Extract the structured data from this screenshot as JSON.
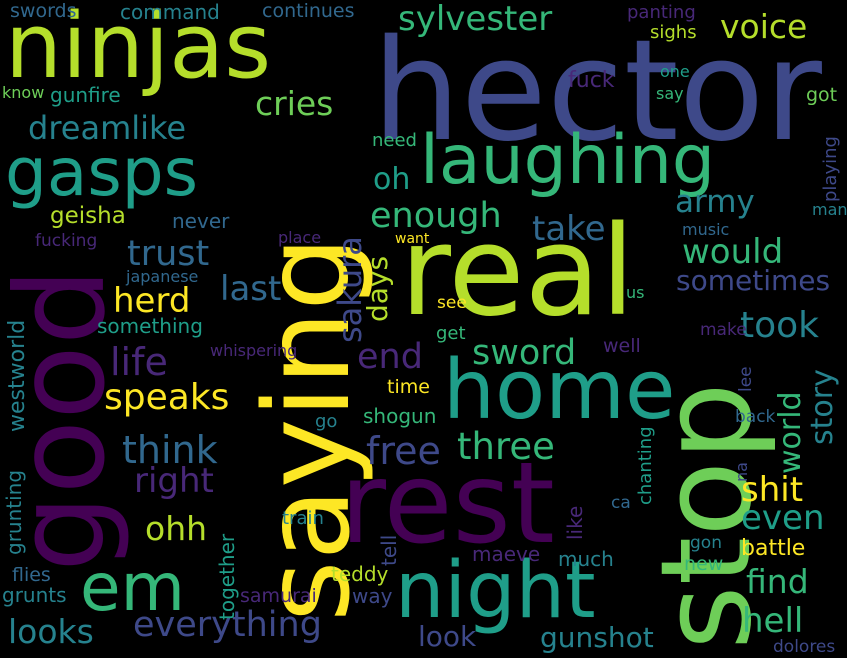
{
  "palette": {
    "background": "#000000",
    "yellow": "#fde725",
    "lime": "#b5de2b",
    "green": "#6ece58",
    "teal_green": "#35b779",
    "teal": "#1f9e89",
    "blue_teal": "#26828e",
    "blue": "#31688e",
    "indigo": "#3e4989",
    "purple": "#482878",
    "dark_purple": "#440154"
  },
  "words": [
    "hector",
    "ninjas",
    "real",
    "rest",
    "saying",
    "stop",
    "good",
    "night",
    "home",
    "laughing",
    "gasps",
    "em",
    "sylvester",
    "voice",
    "cries",
    "dreamlike",
    "enough",
    "oh",
    "sakura",
    "days",
    "army",
    "take",
    "would",
    "trust",
    "herd",
    "last",
    "life",
    "end",
    "sword",
    "took",
    "sometimes",
    "speaks",
    "think",
    "right",
    "ohh",
    "free",
    "three",
    "world",
    "story",
    "shit",
    "even",
    "find",
    "battle",
    "hell",
    "everything",
    "looks",
    "look",
    "gunshot",
    "geisha",
    "never",
    "fucking",
    "japanese",
    "something",
    "whispering",
    "westworld",
    "grunting",
    "flies",
    "grunts",
    "together",
    "train",
    "samurai",
    "teddy",
    "way",
    "maeve",
    "much",
    "like",
    "tell",
    "shogun",
    "time",
    "go",
    "get",
    "see",
    "well",
    "make",
    "lee",
    "back",
    "chanting",
    "ca",
    "na",
    "gon",
    "new",
    "dolores",
    "swords",
    "command",
    "continues",
    "panting",
    "sighs",
    "fuck",
    "one",
    "say",
    "got",
    "know",
    "gunfire",
    "need",
    "want",
    "place",
    "music",
    "playing",
    "man",
    "us"
  ]
}
